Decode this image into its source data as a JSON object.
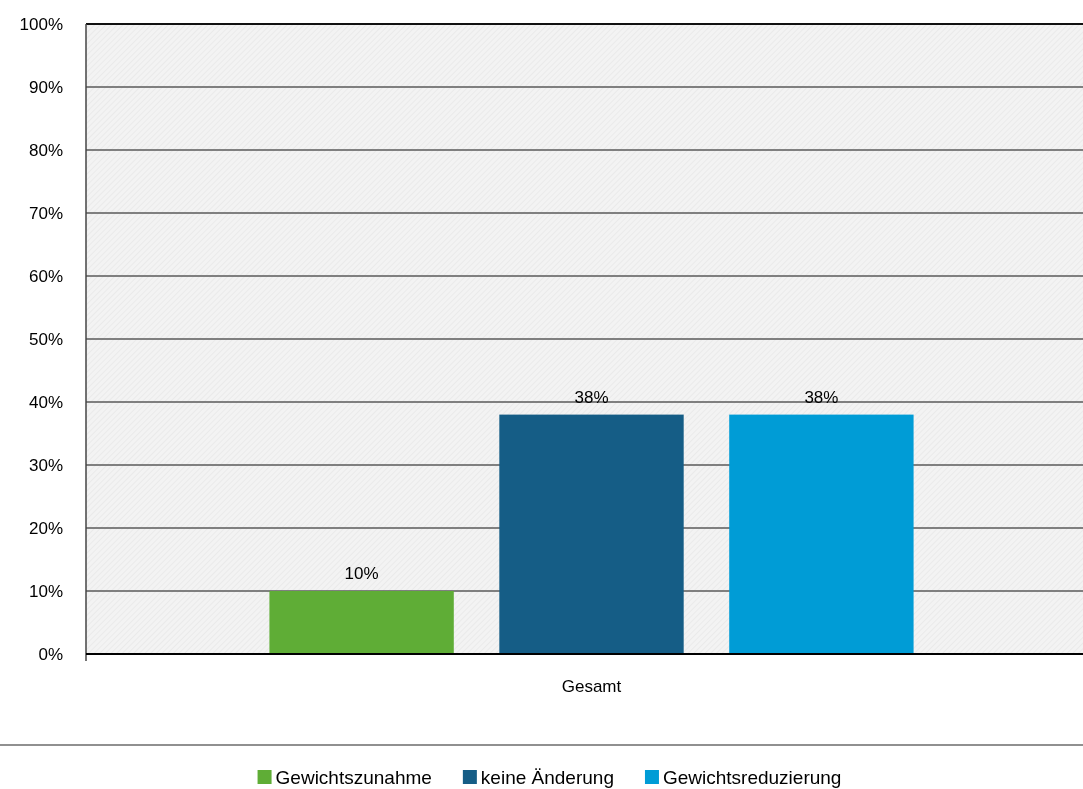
{
  "chart_data": {
    "type": "bar",
    "categories": [
      "Gesamt"
    ],
    "series": [
      {
        "name": "Gewichtszunahme",
        "color": "#5fad36",
        "values": [
          10
        ],
        "value_labels": [
          "10%"
        ]
      },
      {
        "name": "keine Änderung",
        "color": "#155d86",
        "values": [
          38
        ],
        "value_labels": [
          "38%"
        ]
      },
      {
        "name": "Gewichtsreduzierung",
        "color": "#009cd6",
        "values": [
          38
        ],
        "value_labels": [
          "38%"
        ]
      }
    ],
    "ylim": [
      0,
      100
    ],
    "yticks": [
      {
        "value": 0,
        "label": "0%"
      },
      {
        "value": 10,
        "label": "10%"
      },
      {
        "value": 20,
        "label": "20%"
      },
      {
        "value": 30,
        "label": "30%"
      },
      {
        "value": 40,
        "label": "40%"
      },
      {
        "value": 50,
        "label": "50%"
      },
      {
        "value": 60,
        "label": "60%"
      },
      {
        "value": 70,
        "label": "70%"
      },
      {
        "value": 80,
        "label": "80%"
      },
      {
        "value": 90,
        "label": "90%"
      },
      {
        "value": 100,
        "label": "100%"
      }
    ],
    "grid": "y",
    "legend": "bottom"
  }
}
